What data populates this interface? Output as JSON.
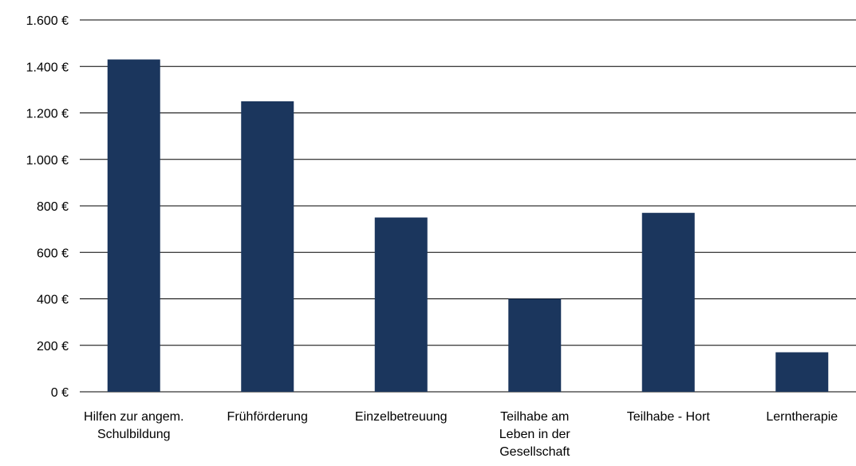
{
  "chart_data": {
    "type": "bar",
    "categories": [
      [
        "Hilfen zur angem.",
        "Schulbildung"
      ],
      [
        "Frühförderung"
      ],
      [
        "Einzelbetreuung"
      ],
      [
        "Teilhabe am",
        "Leben in der",
        "Gesellschaft"
      ],
      [
        "Teilhabe - Hort"
      ],
      [
        "Lerntherapie"
      ]
    ],
    "values": [
      1430,
      1250,
      750,
      400,
      770,
      170
    ],
    "color": "#1b365d",
    "ylim": [
      0,
      1600
    ],
    "yticks": [
      {
        "value": 0,
        "label": "0 €"
      },
      {
        "value": 200,
        "label": "200 €"
      },
      {
        "value": 400,
        "label": "400 €"
      },
      {
        "value": 600,
        "label": "600 €"
      },
      {
        "value": 800,
        "label": "800 €"
      },
      {
        "value": 1000,
        "label": "1.000 €"
      },
      {
        "value": 1200,
        "label": "1.200 €"
      },
      {
        "value": 1400,
        "label": "1.400 €"
      },
      {
        "value": 1600,
        "label": "1.600 €"
      }
    ],
    "grid": true
  }
}
